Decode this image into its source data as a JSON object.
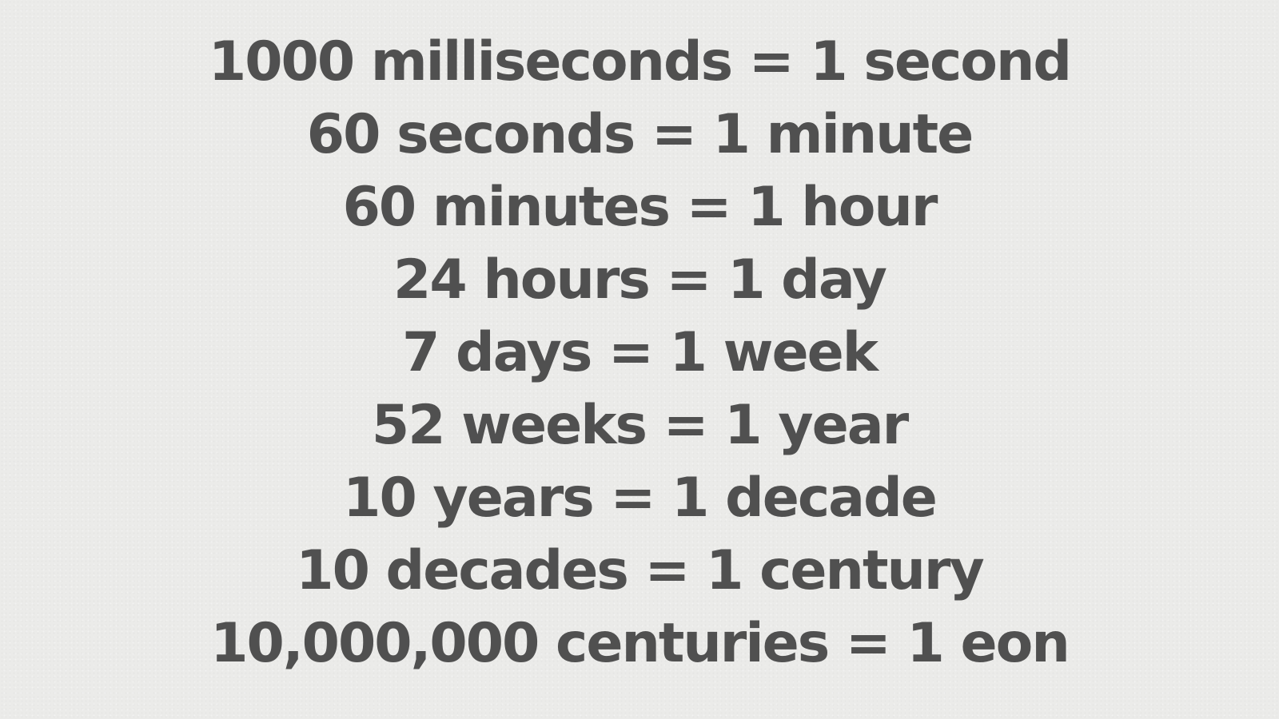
{
  "conversions": [
    "1000 milliseconds = 1 second",
    "60 seconds = 1 minute",
    "60 minutes = 1 hour",
    "24 hours = 1 day",
    "7 days = 1 week",
    "52 weeks = 1 year",
    "10 years = 1 decade",
    "10 decades = 1 century",
    "10,000,000 centuries = 1 eon"
  ],
  "colors": {
    "background": "#ebebe9",
    "text": "#505050"
  }
}
